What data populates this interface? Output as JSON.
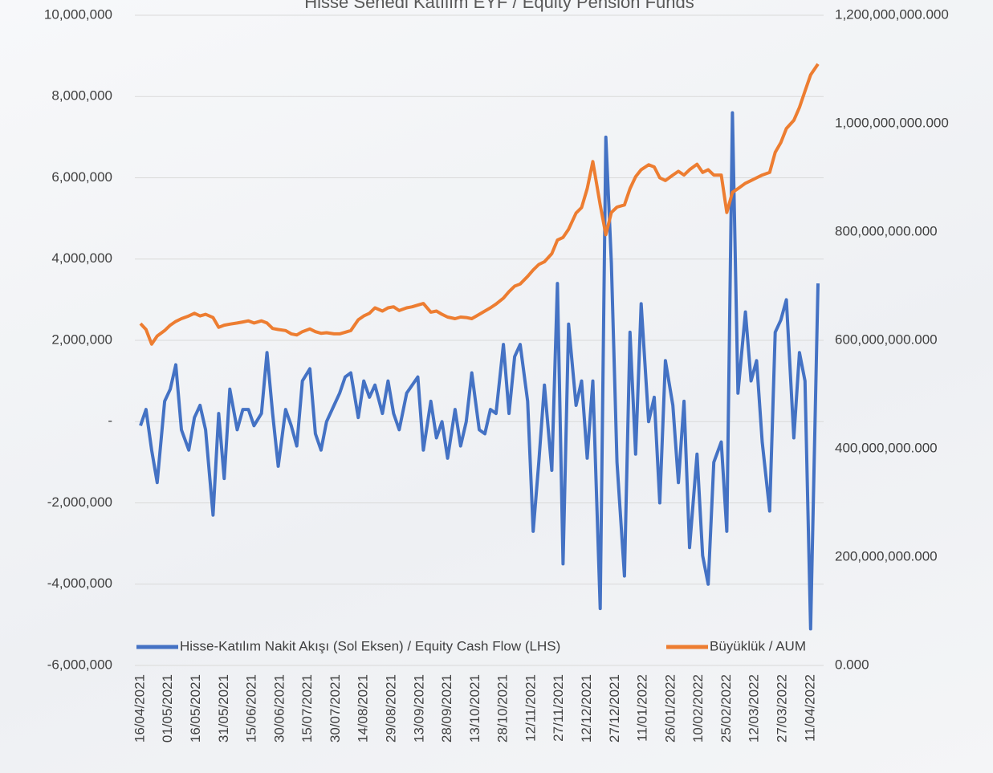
{
  "chart_data": {
    "type": "line",
    "title": "Hisse Senedi Katılım EYF / Equity Pension Funds",
    "x": [
      "16/04/2021",
      "19/04/2021",
      "22/04/2021",
      "25/04/2021",
      "29/04/2021",
      "02/05/2021",
      "05/05/2021",
      "08/05/2021",
      "12/05/2021",
      "15/05/2021",
      "18/05/2021",
      "21/05/2021",
      "25/05/2021",
      "28/05/2021",
      "31/05/2021",
      "03/06/2021",
      "07/06/2021",
      "10/06/2021",
      "13/06/2021",
      "16/06/2021",
      "20/06/2021",
      "23/06/2021",
      "26/06/2021",
      "29/06/2021",
      "03/07/2021",
      "06/07/2021",
      "09/07/2021",
      "12/07/2021",
      "16/07/2021",
      "19/07/2021",
      "22/07/2021",
      "25/07/2021",
      "29/07/2021",
      "01/08/2021",
      "04/08/2021",
      "07/08/2021",
      "11/08/2021",
      "14/08/2021",
      "17/08/2021",
      "20/08/2021",
      "24/08/2021",
      "27/08/2021",
      "30/08/2021",
      "02/09/2021",
      "06/09/2021",
      "09/09/2021",
      "12/09/2021",
      "15/09/2021",
      "19/09/2021",
      "22/09/2021",
      "25/09/2021",
      "28/09/2021",
      "02/10/2021",
      "05/10/2021",
      "08/10/2021",
      "11/10/2021",
      "15/10/2021",
      "18/10/2021",
      "21/10/2021",
      "24/10/2021",
      "28/10/2021",
      "31/10/2021",
      "03/11/2021",
      "06/11/2021",
      "10/11/2021",
      "13/11/2021",
      "16/11/2021",
      "19/11/2021",
      "23/11/2021",
      "26/11/2021",
      "29/11/2021",
      "02/12/2021",
      "06/12/2021",
      "09/12/2021",
      "12/12/2021",
      "15/12/2021",
      "19/12/2021",
      "22/12/2021",
      "25/12/2021",
      "28/12/2021",
      "01/01/2022",
      "04/01/2022",
      "07/01/2022",
      "10/01/2022",
      "14/01/2022",
      "17/01/2022",
      "20/01/2022",
      "23/01/2022",
      "27/01/2022",
      "30/01/2022",
      "02/02/2022",
      "05/02/2022",
      "09/02/2022",
      "12/02/2022",
      "15/02/2022",
      "18/02/2022",
      "22/02/2022",
      "25/02/2022",
      "28/02/2022",
      "03/03/2022",
      "07/03/2022",
      "10/03/2022",
      "13/03/2022",
      "16/03/2022",
      "20/03/2022",
      "23/03/2022",
      "26/03/2022",
      "29/03/2022",
      "02/04/2022",
      "05/04/2022",
      "08/04/2022",
      "11/04/2022",
      "15/04/2022"
    ],
    "series": [
      {
        "name": "Hisse-Katılım Nakit Akışı (Sol Eksen) / Equity Cash Flow (LHS)",
        "color": "#4472c4",
        "axis": "y",
        "values": [
          -100000,
          300000,
          -700000,
          -1500000,
          500000,
          800000,
          1400000,
          -200000,
          -700000,
          100000,
          400000,
          -200000,
          -2300000,
          200000,
          -1400000,
          800000,
          -200000,
          300000,
          300000,
          -100000,
          200000,
          1700000,
          200000,
          -1100000,
          300000,
          -100000,
          -600000,
          1000000,
          1300000,
          -300000,
          -700000,
          0,
          400000,
          700000,
          1100000,
          1200000,
          100000,
          1000000,
          600000,
          900000,
          200000,
          1000000,
          200000,
          -200000,
          700000,
          900000,
          1100000,
          -700000,
          500000,
          -400000,
          0,
          -900000,
          300000,
          -600000,
          0,
          1200000,
          -200000,
          -300000,
          300000,
          200000,
          1900000,
          200000,
          1600000,
          1900000,
          500000,
          -2700000,
          -1000000,
          900000,
          -1200000,
          3400000,
          -3500000,
          2400000,
          400000,
          1000000,
          -900000,
          1000000,
          -4600000,
          7000000,
          3900000,
          -1000000,
          -3800000,
          2200000,
          -800000,
          2900000,
          0,
          600000,
          -2000000,
          1500000,
          400000,
          -1500000,
          500000,
          -3100000,
          -800000,
          -3300000,
          -4000000,
          -1000000,
          -500000,
          -2700000,
          7600000,
          700000,
          2700000,
          1000000,
          1500000,
          -500000,
          -2200000,
          2200000,
          2500000,
          3000000,
          -400000,
          1700000,
          1000000,
          -5100000,
          3400000
        ]
      },
      {
        "name": "Büyüklük / AUM",
        "color": "#ed7d31",
        "axis": "y2",
        "values": [
          631000000000,
          620000000000,
          593000000000,
          608000000000,
          618000000000,
          628000000000,
          635000000000,
          640000000000,
          645000000000,
          650000000000,
          645000000000,
          648000000000,
          642000000000,
          624000000000,
          628000000000,
          630000000000,
          632000000000,
          634000000000,
          636000000000,
          632000000000,
          636000000000,
          632000000000,
          622000000000,
          620000000000,
          618000000000,
          612000000000,
          610000000000,
          616000000000,
          621000000000,
          616000000000,
          613000000000,
          614000000000,
          612000000000,
          612000000000,
          615000000000,
          618000000000,
          638000000000,
          645000000000,
          650000000000,
          660000000000,
          654000000000,
          660000000000,
          662000000000,
          655000000000,
          660000000000,
          662000000000,
          665000000000,
          668000000000,
          652000000000,
          654000000000,
          648000000000,
          643000000000,
          640000000000,
          643000000000,
          642000000000,
          640000000000,
          648000000000,
          654000000000,
          660000000000,
          667000000000,
          678000000000,
          690000000000,
          700000000000,
          704000000000,
          718000000000,
          730000000000,
          740000000000,
          745000000000,
          760000000000,
          785000000000,
          790000000000,
          805000000000,
          835000000000,
          845000000000,
          880000000000,
          930000000000,
          850000000000,
          795000000000,
          836000000000,
          846000000000,
          850000000000,
          880000000000,
          902000000000,
          915000000000,
          924000000000,
          920000000000,
          900000000000,
          895000000000,
          905000000000,
          912000000000,
          905000000000,
          915000000000,
          925000000000,
          910000000000,
          915000000000,
          905000000000,
          905000000000,
          836000000000,
          873000000000,
          880000000000,
          890000000000,
          895000000000,
          900000000000,
          905000000000,
          910000000000,
          947000000000,
          965000000000,
          991000000000,
          1006000000000,
          1030000000000,
          1060000000000,
          1090000000000,
          1110000000000
        ]
      }
    ],
    "xlim": [
      "13/04/2021",
      "18/04/2022"
    ],
    "xticks": [
      "16/04/2021",
      "01/05/2021",
      "16/05/2021",
      "31/05/2021",
      "15/06/2021",
      "30/06/2021",
      "15/07/2021",
      "30/07/2021",
      "14/08/2021",
      "29/08/2021",
      "13/09/2021",
      "28/09/2021",
      "13/10/2021",
      "28/10/2021",
      "12/11/2021",
      "27/11/2021",
      "12/12/2021",
      "27/12/2021",
      "11/01/2022",
      "26/01/2022",
      "10/02/2022",
      "25/02/2022",
      "12/03/2022",
      "27/03/2022",
      "11/04/2022"
    ],
    "ylim": [
      -6000000,
      10000000
    ],
    "yticks": [
      {
        "value": -6000000,
        "label": "-6,000,000"
      },
      {
        "value": -4000000,
        "label": "-4,000,000"
      },
      {
        "value": -2000000,
        "label": "-2,000,000"
      },
      {
        "value": 0,
        "label": "-"
      },
      {
        "value": 2000000,
        "label": "2,000,000"
      },
      {
        "value": 4000000,
        "label": "4,000,000"
      },
      {
        "value": 6000000,
        "label": "6,000,000"
      },
      {
        "value": 8000000,
        "label": "8,000,000"
      },
      {
        "value": 10000000,
        "label": "10,000,000"
      }
    ],
    "y2lim": [
      0,
      1200000000000
    ],
    "y2ticks": [
      {
        "value": 0,
        "label": "0.000"
      },
      {
        "value": 200000000000,
        "label": "200,000,000.000"
      },
      {
        "value": 400000000000,
        "label": "400,000,000.000"
      },
      {
        "value": 600000000000,
        "label": "600,000,000.000"
      },
      {
        "value": 800000000000,
        "label": "800,000,000.000"
      },
      {
        "value": 1000000000000,
        "label": "1,000,000,000.000"
      },
      {
        "value": 1200000000000,
        "label": "1,200,000,000.000"
      }
    ],
    "grid": true,
    "legend": "bottom"
  }
}
